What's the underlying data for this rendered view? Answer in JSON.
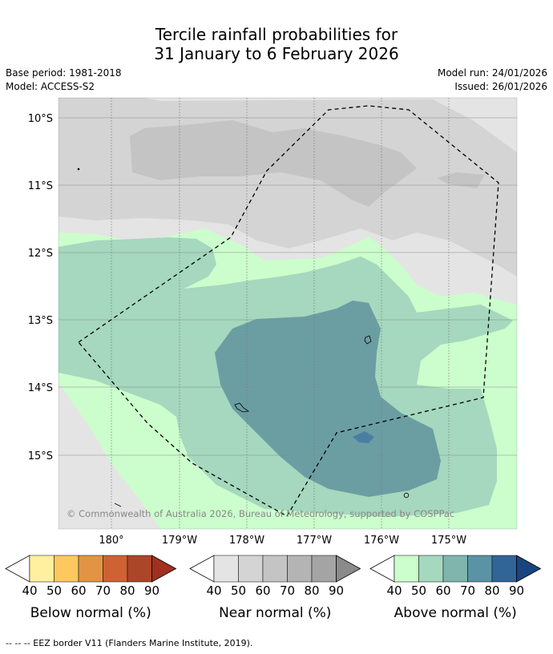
{
  "title": {
    "line1": "Tercile rainfall probabilities for",
    "line2": "31 January to 6 February 2026"
  },
  "meta": {
    "base_period": "Base period: 1981-2018",
    "model": "Model: ACCESS-S2",
    "model_run": "Model run: 24/01/2026",
    "issued": "Issued: 26/01/2026"
  },
  "map": {
    "lat_labels": [
      "10°S",
      "11°S",
      "12°S",
      "13°S",
      "14°S",
      "15°S"
    ],
    "lon_labels": [
      "180°",
      "179°W",
      "178°W",
      "177°W",
      "176°W",
      "175°W"
    ],
    "copyright": "© Commonwealth of Australia 2026, Bureau of Meteorology, supported by COSPPac"
  },
  "legends": [
    {
      "label": "Below normal (%)",
      "ticks": [
        "40",
        "50",
        "60",
        "70",
        "80",
        "90"
      ],
      "colors": [
        "#ffffff",
        "#fff0a0",
        "#fdc85f",
        "#e29444",
        "#cd6333",
        "#ac4628",
        "#a1301f"
      ]
    },
    {
      "label": "Near normal (%)",
      "ticks": [
        "40",
        "50",
        "60",
        "70",
        "80",
        "90"
      ],
      "colors": [
        "#ffffff",
        "#e4e4e4",
        "#d4d4d4",
        "#c4c4c4",
        "#b4b4b4",
        "#a4a4a4",
        "#8a8a8a"
      ]
    },
    {
      "label": "Above normal (%)",
      "ticks": [
        "40",
        "50",
        "60",
        "70",
        "80",
        "90"
      ],
      "colors": [
        "#ffffff",
        "#ccfdcc",
        "#a5d8be",
        "#7fb5ad",
        "#5a93a3",
        "#316598",
        "#19447f"
      ]
    }
  ],
  "footer": "-- -- -- EEZ border V11 (Flanders Marine Institute, 2019)."
}
